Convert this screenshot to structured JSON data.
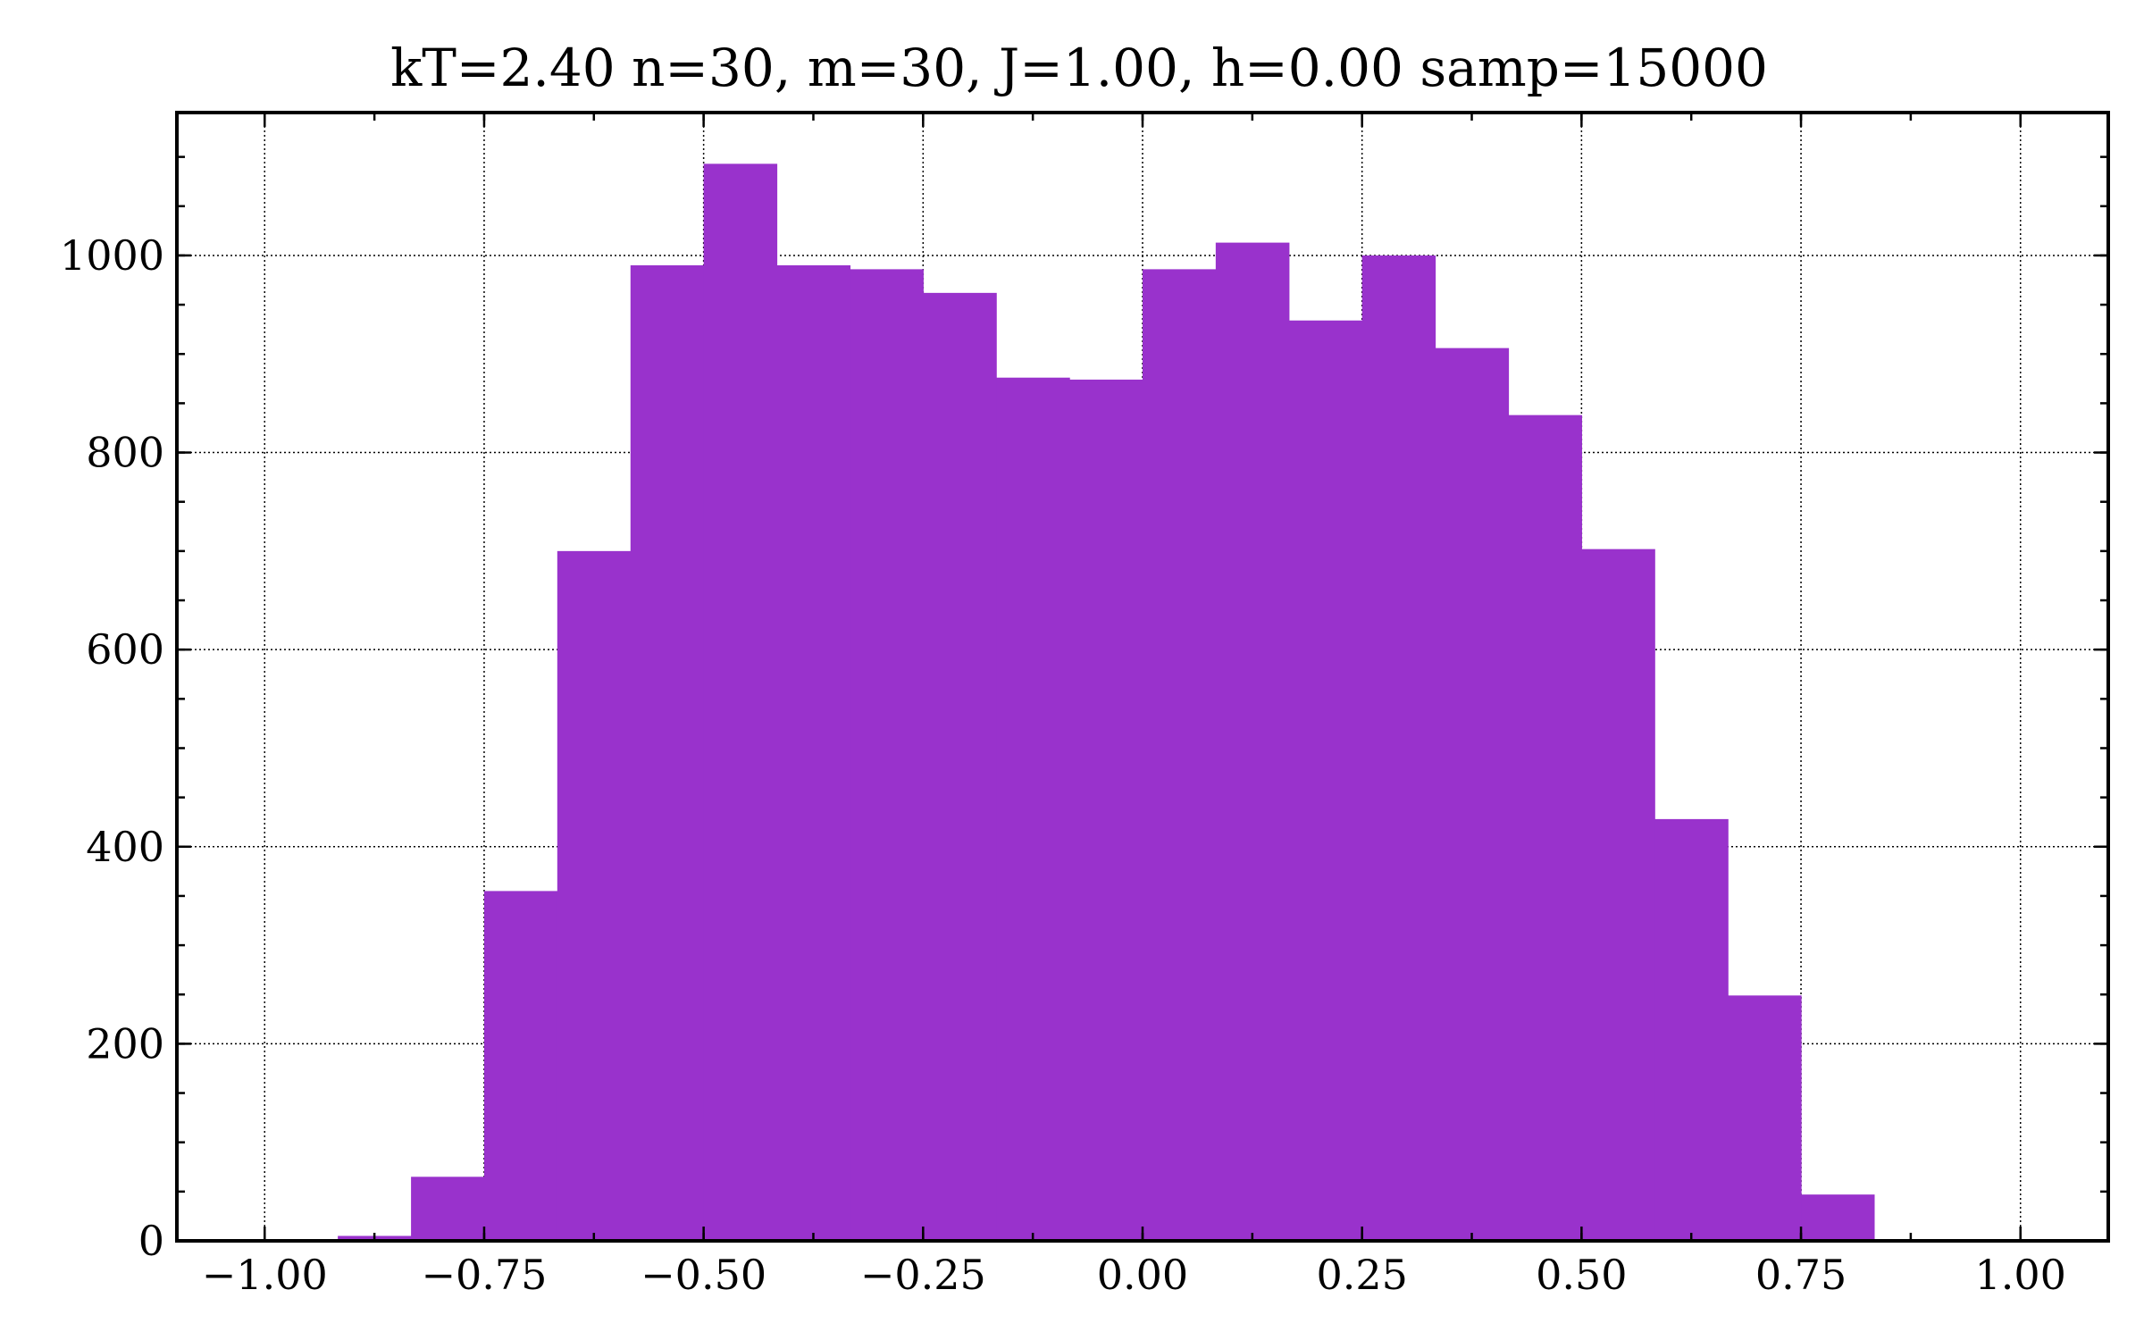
{
  "chart_data": {
    "type": "bar",
    "title": "kT=2.40 n=30, m=30, J=1.00, h=0.00 samp=15000",
    "xlabel": "",
    "ylabel": "",
    "xlim": [
      -1.1,
      1.1
    ],
    "ylim": [
      0,
      1145
    ],
    "grid": true,
    "color": "#9932cc",
    "x_ticks": [
      {
        "value": -1.0,
        "label": "−1.00"
      },
      {
        "value": -0.75,
        "label": "−0.75"
      },
      {
        "value": -0.5,
        "label": "−0.50"
      },
      {
        "value": -0.25,
        "label": "−0.25"
      },
      {
        "value": 0.0,
        "label": "0.00"
      },
      {
        "value": 0.25,
        "label": "0.25"
      },
      {
        "value": 0.5,
        "label": "0.50"
      },
      {
        "value": 0.75,
        "label": "0.75"
      },
      {
        "value": 1.0,
        "label": "1.00"
      }
    ],
    "y_ticks": [
      {
        "value": 0,
        "label": "0"
      },
      {
        "value": 200,
        "label": "200"
      },
      {
        "value": 400,
        "label": "400"
      },
      {
        "value": 600,
        "label": "600"
      },
      {
        "value": 800,
        "label": "800"
      },
      {
        "value": 1000,
        "label": "1000"
      }
    ],
    "bin_edges": [
      -0.9167,
      -0.8333,
      -0.75,
      -0.6667,
      -0.5833,
      -0.5,
      -0.4167,
      -0.3333,
      -0.25,
      -0.1667,
      -0.0833,
      0.0,
      0.0833,
      0.1667,
      0.25,
      0.3333,
      0.4167,
      0.5,
      0.5833,
      0.6667,
      0.75,
      0.8333
    ],
    "values": [
      5,
      65,
      355,
      700,
      990,
      1093,
      990,
      986,
      962,
      876,
      874,
      986,
      1013,
      934,
      1000,
      906,
      838,
      702,
      428,
      249,
      47
    ]
  }
}
